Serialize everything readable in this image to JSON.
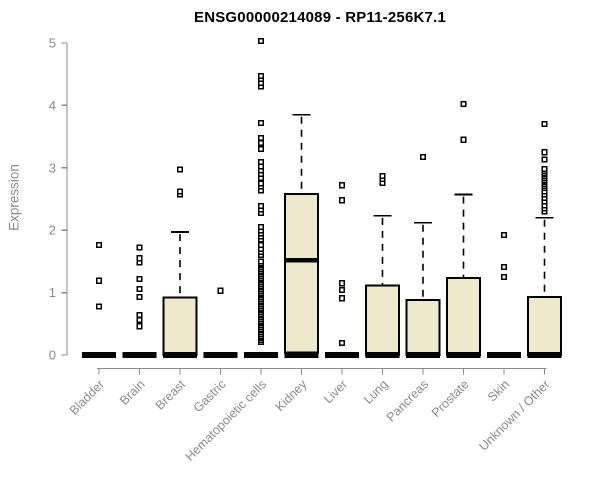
{
  "chart_data": {
    "type": "boxplot",
    "title": "ENSG00000214089 - RP11-256K7.1",
    "ylabel": "Expression",
    "xlabel": "",
    "ylim": [
      0,
      5
    ],
    "yticks": [
      0,
      1,
      2,
      3,
      4,
      5
    ],
    "grid": false,
    "legend": false,
    "colors": {
      "box_fill": "#EEE8CD",
      "box_stroke": "#000000",
      "axis_color": "#8a8a8a",
      "tick_label_color": "#8a8a8a",
      "title_color": "#000000"
    },
    "categories": [
      "Bladder",
      "Brain",
      "Breast",
      "Gastric",
      "Hematopoietic cells",
      "Kidney",
      "Liver",
      "Lung",
      "Pancreas",
      "Prostate",
      "Skin",
      "Unknown / Other"
    ],
    "series": [
      {
        "name": "Bladder",
        "q1": 0,
        "median": 0,
        "q3": 0,
        "whisker_low": 0,
        "whisker_high": 0,
        "outliers": [
          0.78,
          1.19,
          1.76
        ]
      },
      {
        "name": "Brain",
        "q1": 0,
        "median": 0,
        "q3": 0,
        "whisker_low": 0,
        "whisker_high": 0,
        "outliers": [
          0.46,
          0.56,
          0.64,
          0.93,
          1.06,
          1.22,
          1.48,
          1.55,
          1.72
        ]
      },
      {
        "name": "Breast",
        "q1": 0,
        "median": 0,
        "q3": 0.92,
        "whisker_low": 0,
        "whisker_high": 1.97,
        "outliers": [
          2.57,
          2.62,
          2.97
        ]
      },
      {
        "name": "Gastric",
        "q1": 0,
        "median": 0,
        "q3": 0,
        "whisker_low": 0,
        "whisker_high": 0,
        "outliers": [
          1.03
        ]
      },
      {
        "name": "Hematopoietic cells",
        "q1": 0,
        "median": 0,
        "q3": 0,
        "whisker_low": 0,
        "whisker_high": 0,
        "outliers": [
          0.21,
          0.24,
          0.27,
          0.3,
          0.33,
          0.36,
          0.39,
          0.42,
          0.45,
          0.48,
          0.51,
          0.54,
          0.57,
          0.6,
          0.63,
          0.66,
          0.69,
          0.72,
          0.75,
          0.78,
          0.81,
          0.84,
          0.87,
          0.9,
          0.93,
          0.96,
          0.99,
          1.02,
          1.05,
          1.08,
          1.11,
          1.14,
          1.17,
          1.2,
          1.23,
          1.26,
          1.29,
          1.32,
          1.35,
          1.38,
          1.41,
          1.44,
          1.47,
          1.5,
          1.6,
          1.65,
          1.7,
          1.76,
          1.85,
          1.9,
          1.95,
          2.0,
          2.05,
          2.28,
          2.33,
          2.39,
          2.64,
          2.7,
          2.75,
          2.84,
          2.9,
          2.96,
          3.02,
          3.09,
          3.3,
          3.4,
          3.48,
          3.72,
          4.3,
          4.36,
          4.42,
          4.47,
          5.03
        ]
      },
      {
        "name": "Kidney",
        "q1": 0.04,
        "median": 1.52,
        "q3": 2.58,
        "whisker_low": 0,
        "whisker_high": 3.85,
        "outliers": []
      },
      {
        "name": "Liver",
        "q1": 0,
        "median": 0,
        "q3": 0,
        "whisker_low": 0,
        "whisker_high": 0,
        "outliers": [
          0.19,
          0.91,
          1.04,
          1.15,
          2.48,
          2.72
        ]
      },
      {
        "name": "Lung",
        "q1": 0,
        "median": 0,
        "q3": 1.11,
        "whisker_low": 0,
        "whisker_high": 2.23,
        "outliers": [
          2.76,
          2.82,
          2.87
        ]
      },
      {
        "name": "Pancreas",
        "q1": 0,
        "median": 0,
        "q3": 0.88,
        "whisker_low": 0,
        "whisker_high": 2.12,
        "outliers": [
          3.17
        ]
      },
      {
        "name": "Prostate",
        "q1": 0,
        "median": 0,
        "q3": 1.23,
        "whisker_low": 0,
        "whisker_high": 2.57,
        "outliers": [
          3.45,
          4.02
        ]
      },
      {
        "name": "Skin",
        "q1": 0,
        "median": 0,
        "q3": 0,
        "whisker_low": 0,
        "whisker_high": 0,
        "outliers": [
          1.25,
          1.41,
          1.92
        ]
      },
      {
        "name": "Unknown / Other",
        "q1": 0,
        "median": 0,
        "q3": 0.93,
        "whisker_low": 0,
        "whisker_high": 2.2,
        "outliers": [
          2.3,
          2.35,
          2.4,
          2.46,
          2.52,
          2.57,
          2.62,
          2.68,
          2.71,
          2.74,
          2.77,
          2.8,
          2.83,
          2.86,
          2.89,
          2.92,
          2.95,
          2.98,
          3.13,
          3.25,
          3.7
        ]
      }
    ]
  }
}
